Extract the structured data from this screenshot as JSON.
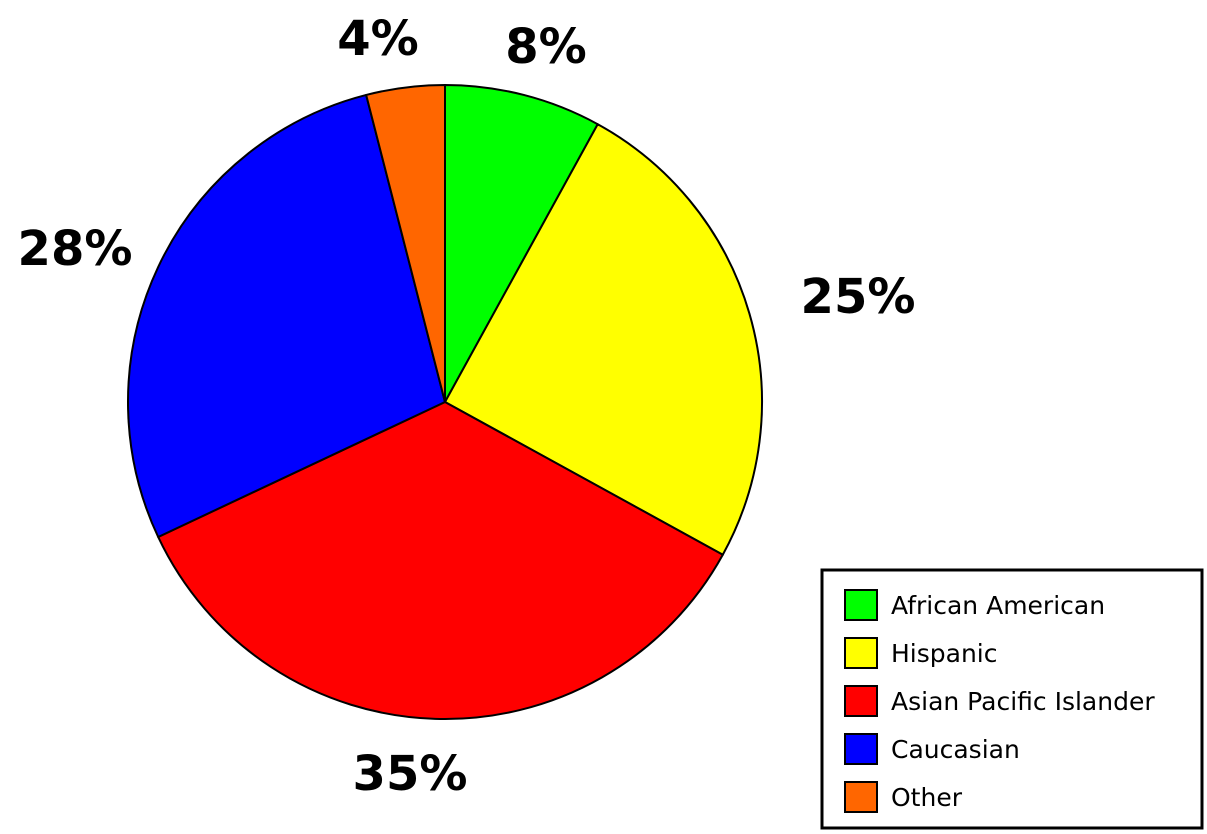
{
  "chart_data": {
    "type": "pie",
    "slices": [
      {
        "label": "African American",
        "value": 8,
        "display": "8%",
        "color": "#00FF00"
      },
      {
        "label": "Hispanic",
        "value": 25,
        "display": "25%",
        "color": "#FFFF00"
      },
      {
        "label": "Asian Pacific Islander",
        "value": 35,
        "display": "35%",
        "color": "#FF0000"
      },
      {
        "label": "Caucasian",
        "value": 28,
        "display": "28%",
        "color": "#0000FF"
      },
      {
        "label": "Other",
        "value": 4,
        "display": "4%",
        "color": "#FF6600"
      }
    ],
    "start_angle": "12 o'clock",
    "direction": "clockwise",
    "legend": {
      "placement": "bottom-right"
    },
    "title": ""
  }
}
